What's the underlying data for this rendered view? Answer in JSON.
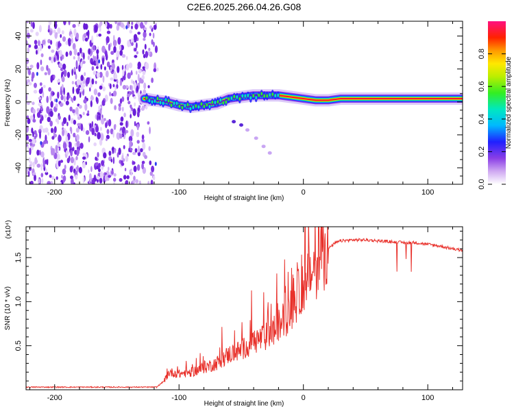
{
  "title": "C2E6.2025.266.04.26.G08",
  "colors": {
    "snr_line": "#e8302a",
    "axes": "#000000",
    "spectrogram_noise": "#7a2de0",
    "ridge_core": "#ff1030",
    "ridge_halo": "#00c8ff"
  },
  "chart_data": [
    {
      "id": "spectrogram",
      "type": "heatmap",
      "title": "",
      "xlabel": "Height of straight line (km)",
      "ylabel": "Frequency (Hz)",
      "xlim": [
        -223,
        128
      ],
      "ylim": [
        -50,
        49
      ],
      "xticks": [
        -200,
        -100,
        0,
        100
      ],
      "yticks": [
        -40,
        -20,
        0,
        20,
        40
      ],
      "noise_region_x": [
        -223,
        -117
      ],
      "ridge": {
        "x": [
          -128,
          -120,
          -110,
          -100,
          -90,
          -80,
          -70,
          -60,
          -50,
          -40,
          -30,
          -20,
          -10,
          0,
          10,
          20,
          30,
          40,
          60,
          80,
          100,
          120,
          128
        ],
        "hz": [
          2,
          1,
          0,
          -2,
          -3,
          -2,
          -1,
          2,
          3,
          4,
          4,
          4,
          3,
          2,
          1,
          1,
          2,
          2,
          2,
          2,
          2,
          2,
          2
        ]
      },
      "faint_arc": {
        "x": [
          -56,
          -50,
          -45,
          -38,
          -32,
          -27
        ],
        "hz": [
          -12,
          -14,
          -17,
          -22,
          -27,
          -31
        ]
      },
      "colorbar": {
        "label": "Normalized spectral amplitude",
        "range": [
          0.0,
          1.0
        ],
        "ticks": [
          0.0,
          0.2,
          0.4,
          0.6,
          0.8
        ]
      }
    },
    {
      "id": "snr",
      "type": "line",
      "title": "",
      "xlabel": "Height of straight line (km)",
      "ylabel": "SNR (10 * v/v)",
      "multiplier_label": "(x10⁴)",
      "xlim": [
        -223,
        128
      ],
      "ylim": [
        0.0,
        1.85
      ],
      "xticks": [
        -200,
        -100,
        0,
        100
      ],
      "yticks": [
        0.5,
        1.0,
        1.5
      ],
      "series": [
        {
          "name": "SNR",
          "x": [
            -223,
            -180,
            -140,
            -118,
            -112,
            -108,
            -100,
            -90,
            -80,
            -70,
            -60,
            -50,
            -40,
            -30,
            -20,
            -10,
            -5,
            0,
            5,
            10,
            15,
            20,
            25,
            30,
            40,
            50,
            60,
            70,
            80,
            90,
            100,
            110,
            120,
            128
          ],
          "values": [
            0.03,
            0.03,
            0.03,
            0.03,
            0.1,
            0.2,
            0.18,
            0.2,
            0.25,
            0.3,
            0.4,
            0.45,
            0.55,
            0.6,
            0.72,
            0.9,
            1.05,
            1.2,
            1.3,
            1.4,
            1.52,
            1.6,
            1.66,
            1.69,
            1.7,
            1.7,
            1.69,
            1.68,
            1.67,
            1.67,
            1.65,
            1.63,
            1.6,
            1.58
          ]
        }
      ]
    }
  ]
}
